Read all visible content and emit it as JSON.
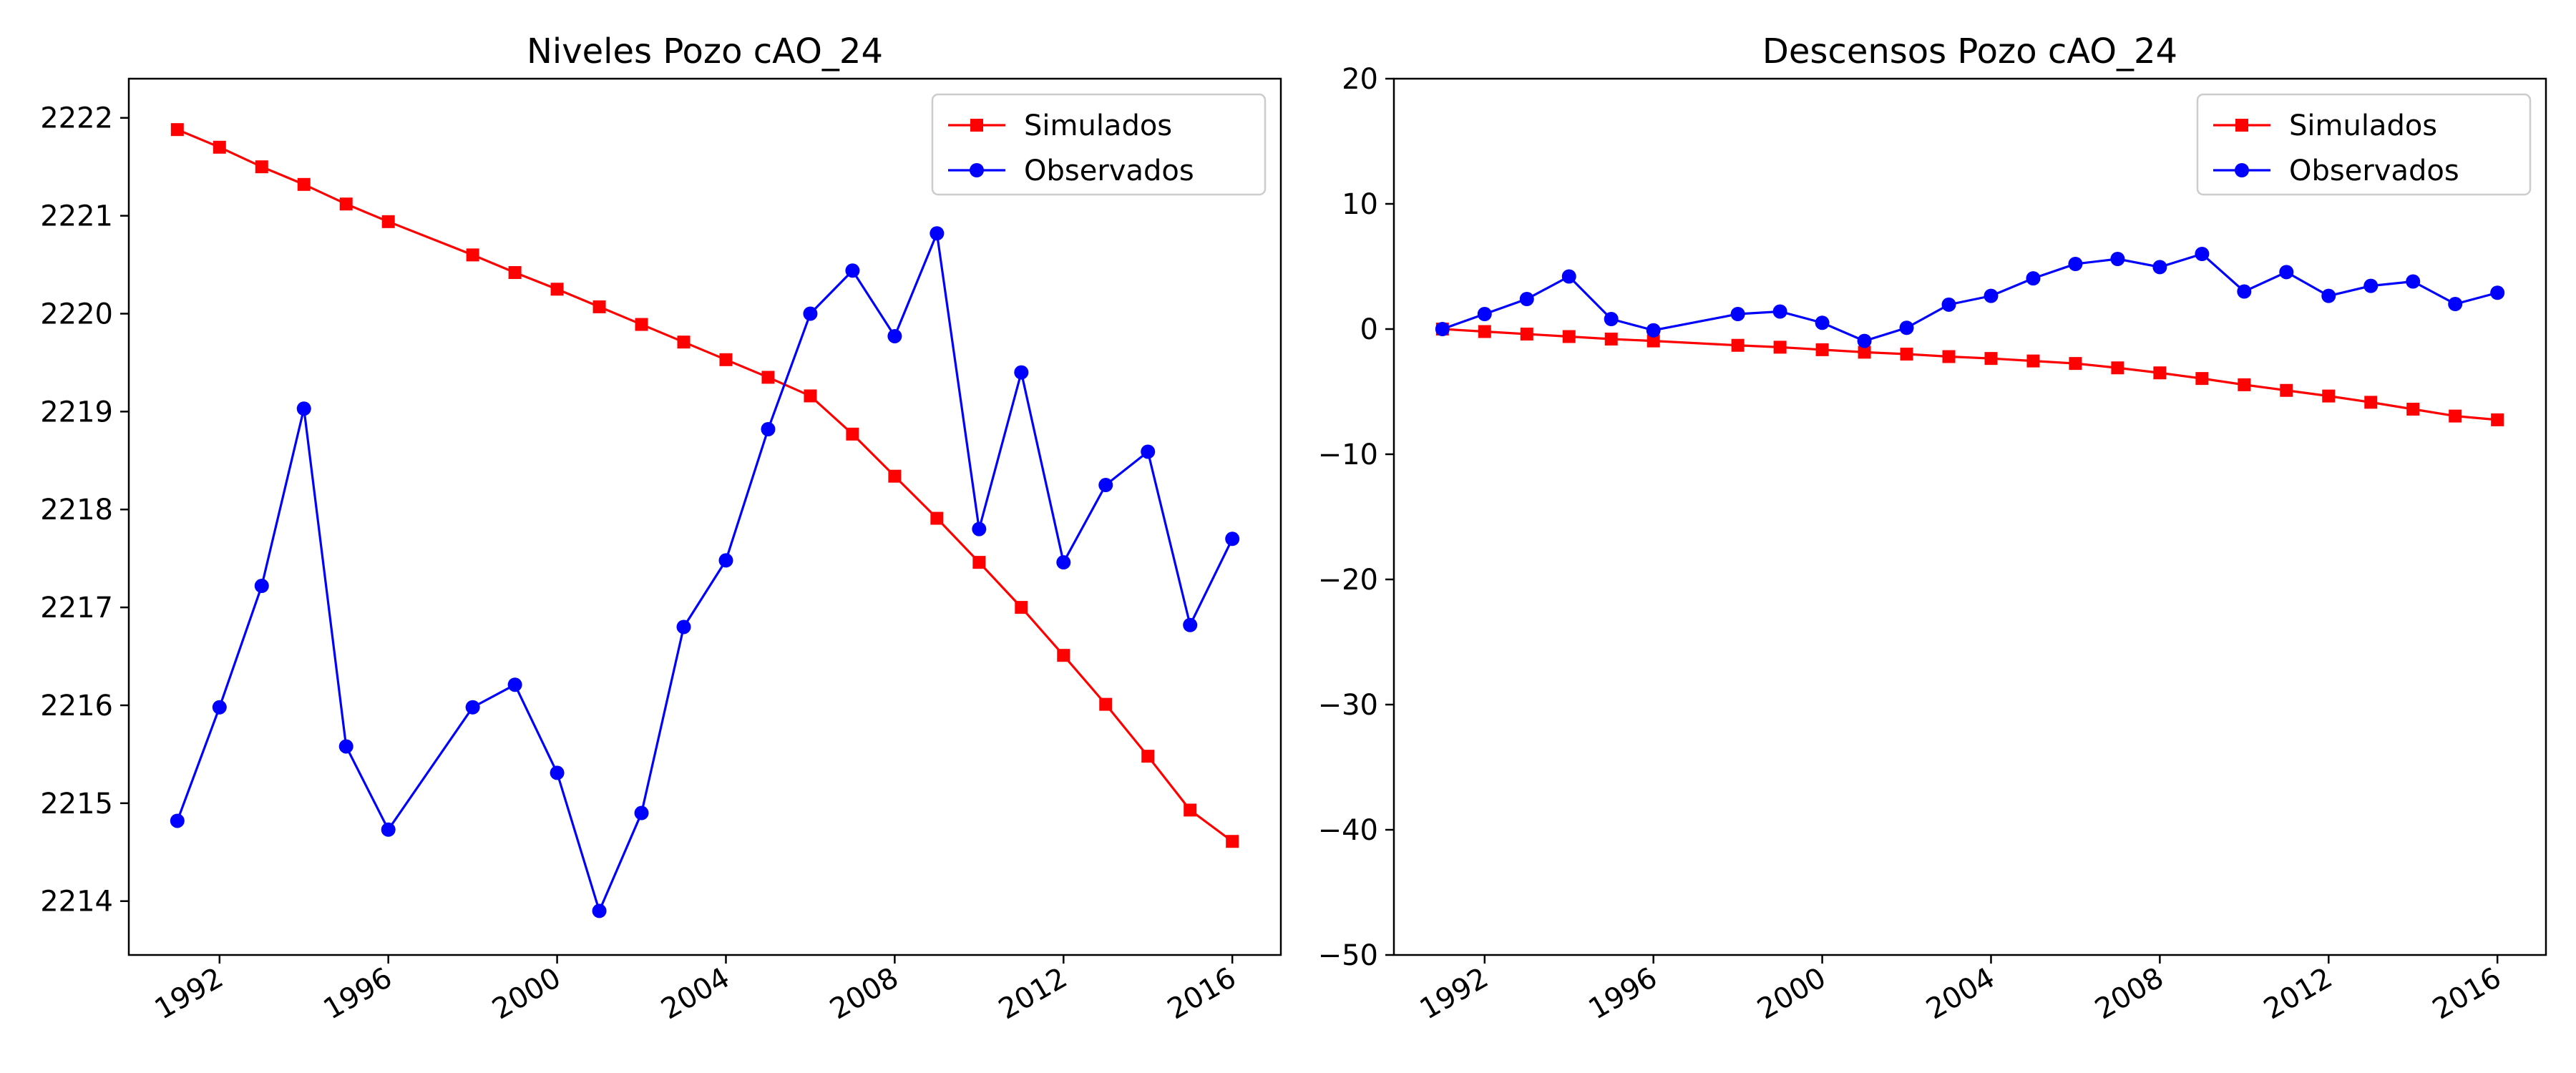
{
  "chart_data": [
    {
      "type": "line",
      "title": "Niveles Pozo cAO_24",
      "xlabel": "",
      "ylabel": "",
      "xlim": [
        1989.85,
        2017.15
      ],
      "ylim": [
        2213.45,
        2222.4
      ],
      "x_ticks": [
        1992,
        1996,
        2000,
        2004,
        2008,
        2012,
        2016
      ],
      "y_ticks": [
        2214,
        2215,
        2216,
        2217,
        2218,
        2219,
        2220,
        2221,
        2222
      ],
      "legend": "top-right",
      "grid": false,
      "series": [
        {
          "name": "Simulados",
          "color": "#ff0000",
          "marker": "square",
          "x": [
            1991,
            1992,
            1993,
            1994,
            1995,
            1996,
            1998,
            1999,
            2000,
            2001,
            2002,
            2003,
            2004,
            2005,
            2006,
            2007,
            2008,
            2009,
            2010,
            2011,
            2012,
            2013,
            2014,
            2015,
            2016
          ],
          "y": [
            2221.88,
            2221.7,
            2221.5,
            2221.32,
            2221.12,
            2220.94,
            2220.6,
            2220.42,
            2220.25,
            2220.07,
            2219.89,
            2219.71,
            2219.53,
            2219.35,
            2219.16,
            2218.77,
            2218.34,
            2217.91,
            2217.46,
            2217.0,
            2216.51,
            2216.01,
            2215.48,
            2214.93,
            2214.61
          ]
        },
        {
          "name": "Observados",
          "color": "#0000ff",
          "marker": "circle",
          "x": [
            1991,
            1992,
            1993,
            1994,
            1995,
            1996,
            1998,
            1999,
            2000,
            2001,
            2002,
            2003,
            2004,
            2005,
            2006,
            2007,
            2008,
            2009,
            2010,
            2011,
            2012,
            2013,
            2014,
            2015,
            2016
          ],
          "y": [
            2214.82,
            2215.98,
            2217.22,
            2219.03,
            2215.58,
            2214.73,
            2215.98,
            2216.21,
            2215.31,
            2213.9,
            2214.9,
            2216.8,
            2217.48,
            2218.82,
            2220.0,
            2220.44,
            2219.77,
            2220.82,
            2217.8,
            2219.4,
            2217.46,
            2218.25,
            2218.59,
            2216.82,
            2217.7
          ]
        }
      ]
    },
    {
      "type": "line",
      "title": "Descensos Pozo cAO_24",
      "xlabel": "",
      "ylabel": "",
      "xlim": [
        1989.85,
        2017.15
      ],
      "ylim": [
        -50,
        20
      ],
      "x_ticks": [
        1992,
        1996,
        2000,
        2004,
        2008,
        2012,
        2016
      ],
      "y_ticks": [
        -50,
        -40,
        -30,
        -20,
        -10,
        0,
        10,
        20
      ],
      "legend": "top-right",
      "grid": false,
      "series": [
        {
          "name": "Simulados",
          "color": "#ff0000",
          "marker": "square",
          "x": [
            1991,
            1992,
            1993,
            1994,
            1995,
            1996,
            1998,
            1999,
            2000,
            2001,
            2002,
            2003,
            2004,
            2005,
            2006,
            2007,
            2008,
            2009,
            2010,
            2011,
            2012,
            2013,
            2014,
            2015,
            2016
          ],
          "y": [
            0.0,
            -0.2,
            -0.4,
            -0.6,
            -0.8,
            -0.95,
            -1.3,
            -1.45,
            -1.65,
            -1.85,
            -2.0,
            -2.2,
            -2.35,
            -2.55,
            -2.75,
            -3.1,
            -3.5,
            -3.95,
            -4.45,
            -4.9,
            -5.35,
            -5.85,
            -6.4,
            -6.95,
            -7.25
          ]
        },
        {
          "name": "Observados",
          "color": "#0000ff",
          "marker": "circle",
          "x": [
            1991,
            1992,
            1993,
            1994,
            1995,
            1996,
            1998,
            1999,
            2000,
            2001,
            2002,
            2003,
            2004,
            2005,
            2006,
            2007,
            2008,
            2009,
            2010,
            2011,
            2012,
            2013,
            2014,
            2015,
            2016
          ],
          "y": [
            0.0,
            1.2,
            2.4,
            4.2,
            0.8,
            -0.1,
            1.2,
            1.4,
            0.5,
            -0.95,
            0.1,
            1.95,
            2.65,
            4.05,
            5.2,
            5.6,
            4.95,
            6.0,
            3.0,
            4.55,
            2.65,
            3.45,
            3.8,
            2.0,
            2.9
          ]
        }
      ]
    }
  ]
}
